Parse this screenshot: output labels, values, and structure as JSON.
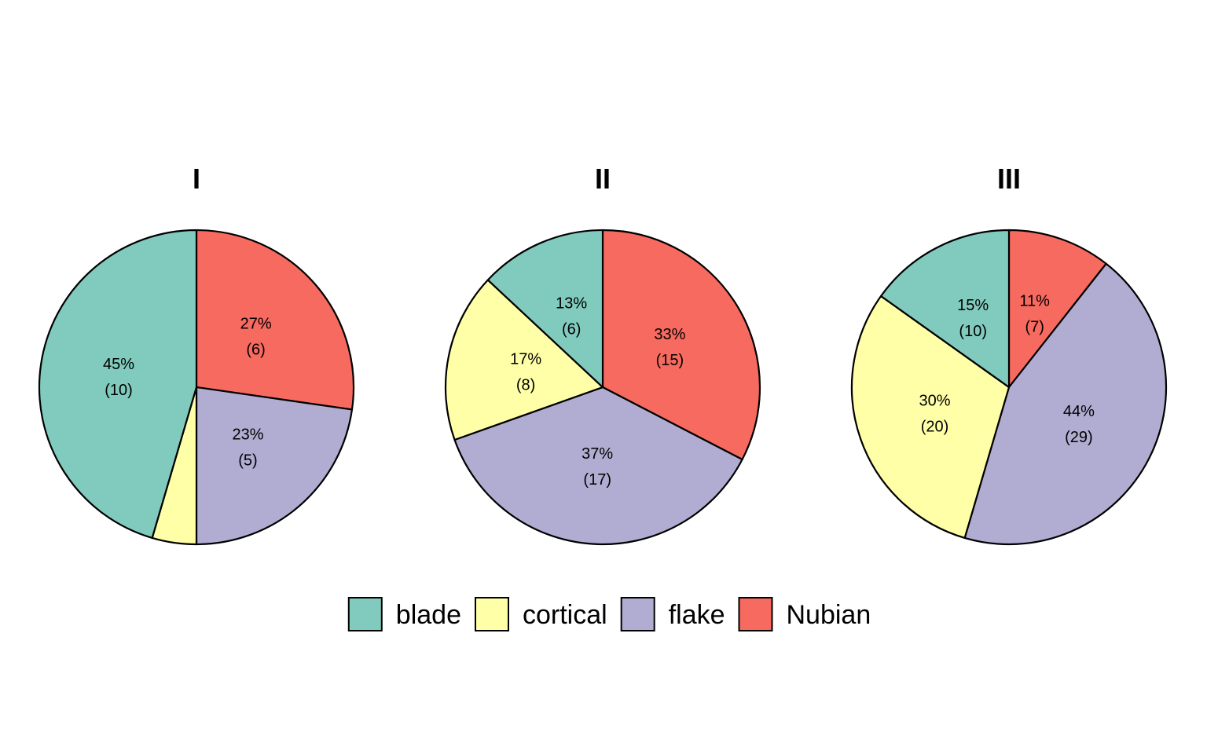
{
  "chart_data": {
    "type": "pie",
    "categories": [
      "blade",
      "cortical",
      "flake",
      "Nubian"
    ],
    "colors": {
      "blade": "#80CBBD",
      "cortical": "#FFFFA8",
      "flake": "#B1ACD1",
      "Nubian": "#F76A60"
    },
    "panels": [
      {
        "title": "I",
        "slices": [
          {
            "category": "Nubian",
            "count": 6,
            "percent": "27%",
            "count_label": "(6)"
          },
          {
            "category": "flake",
            "count": 5,
            "percent": "23%",
            "count_label": "(5)"
          },
          {
            "category": "cortical",
            "count": 1,
            "percent": "",
            "count_label": ""
          },
          {
            "category": "blade",
            "count": 10,
            "percent": "45%",
            "count_label": "(10)"
          }
        ]
      },
      {
        "title": "II",
        "slices": [
          {
            "category": "Nubian",
            "count": 15,
            "percent": "33%",
            "count_label": "(15)"
          },
          {
            "category": "flake",
            "count": 17,
            "percent": "37%",
            "count_label": "(17)"
          },
          {
            "category": "cortical",
            "count": 8,
            "percent": "17%",
            "count_label": "(8)"
          },
          {
            "category": "blade",
            "count": 6,
            "percent": "13%",
            "count_label": "(6)"
          }
        ]
      },
      {
        "title": "III",
        "slices": [
          {
            "category": "Nubian",
            "count": 7,
            "percent": "11%",
            "count_label": "(7)"
          },
          {
            "category": "flake",
            "count": 29,
            "percent": "44%",
            "count_label": "(29)"
          },
          {
            "category": "cortical",
            "count": 20,
            "percent": "30%",
            "count_label": "(20)"
          },
          {
            "category": "blade",
            "count": 10,
            "percent": "15%",
            "count_label": "(10)"
          }
        ]
      }
    ],
    "legend": {
      "position": "bottom",
      "items": [
        "blade",
        "cortical",
        "flake",
        "Nubian"
      ]
    }
  }
}
